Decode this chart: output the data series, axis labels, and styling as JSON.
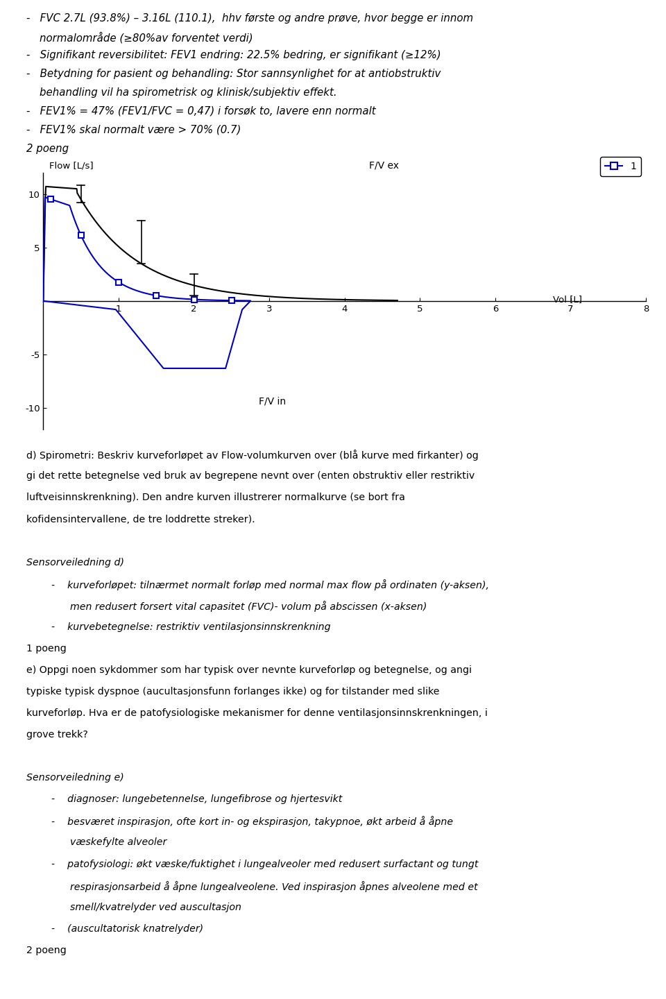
{
  "background_color": "#ffffff",
  "text_color": "#000000",
  "blue_color": "#0000cc",
  "black_color": "#000000",
  "bullet_lines_top": [
    "-   FVC 2.7L (93.8%) – 3.16L (110.1),  hhv første og andre prøve, hvor begge er innom",
    "    normalområde (≥80%av forventet verdi)",
    "-   Signifikant reversibilitet: FEV1 endring: 22.5% bedring, er signifikant (≥12%)",
    "-   Betydning for pasient og behandling: Stor sannsynlighet for at antiobstruktiv",
    "    behandling vil ha spirometrisk og klinisk/subjektiv effekt.",
    "-   FEV1% = 47% (FEV1/FVC = 0,47) i forsøk to, lavere enn normalt",
    "-   FEV1% skal normalt være > 70% (0.7)",
    "2 poeng"
  ],
  "plot_ylabel": "Flow [L/s]",
  "plot_xlabel": "Vol [L]",
  "plot_label_fvex": "F/V ex",
  "plot_label_fvin": "F/V in",
  "legend_label": "1",
  "xlim": [
    0,
    8
  ],
  "ylim": [
    -12,
    12
  ],
  "yticks": [
    -10,
    -5,
    0,
    5,
    10
  ],
  "xticks": [
    1,
    2,
    3,
    4,
    5,
    6,
    7,
    8
  ],
  "text_below_plot": [
    "d) Spirometri: Beskriv kurveforløpet av Flow-volumkurven over (blå kurve med firkanter) og",
    "gi det rette betegnelse ved bruk av begrepene nevnt over (enten obstruktiv eller restriktiv",
    "luftveisinnskrenkning). Den andre kurven illustrerer normalkurve (se bort fra",
    "kofidensintervallene, de tre loddrette streker)."
  ],
  "text_sensor_d_header": "Sensorveiledning d)",
  "text_sensor_d_items": [
    "-    kurveforløpet: tilnærmet normalt forløp med normal max flow på ordinaten (y-aksen),",
    "      men redusert forsert vital capasitet (FVC)- volum på abscissen (x-aksen)",
    "-    kurvebetegnelse: restriktiv ventilasjonsinnskrenkning"
  ],
  "text_1poeng": "1 poeng",
  "text_e": [
    "e) Oppgi noen sykdommer som har typisk over nevnte kurveforløp og betegnelse, og angi",
    "typiske typisk dyspnoe (aucultasjonsfunn forlanges ikke) og for tilstander med slike",
    "kurveforløp. Hva er de patofysiologiske mekanismer for denne ventilasjonsinnskrenkningen, i",
    "grove trekk?"
  ],
  "text_sensor_e_header": "Sensorveiledning e)",
  "text_sensor_e_items": [
    "-    diagnoser: lungebetennelse, lungefibrose og hjertesvikt",
    "-    besværet inspirasjon, ofte kort in- og ekspirasjon, takypnoe, økt arbeid å åpne",
    "      væskefylte alveoler",
    "-    patofysiologi: økt væske/fuktighet i lungealveoler med redusert surfactant og tungt",
    "      respirasjonsarbeid å åpne lungealveolene. Ved inspirasjon åpnes alveolene med et",
    "      smell/kvatrelyder ved auscultasjon",
    "-    (auscultatorisk knatrelyder)"
  ],
  "text_2poeng": "2 poeng"
}
